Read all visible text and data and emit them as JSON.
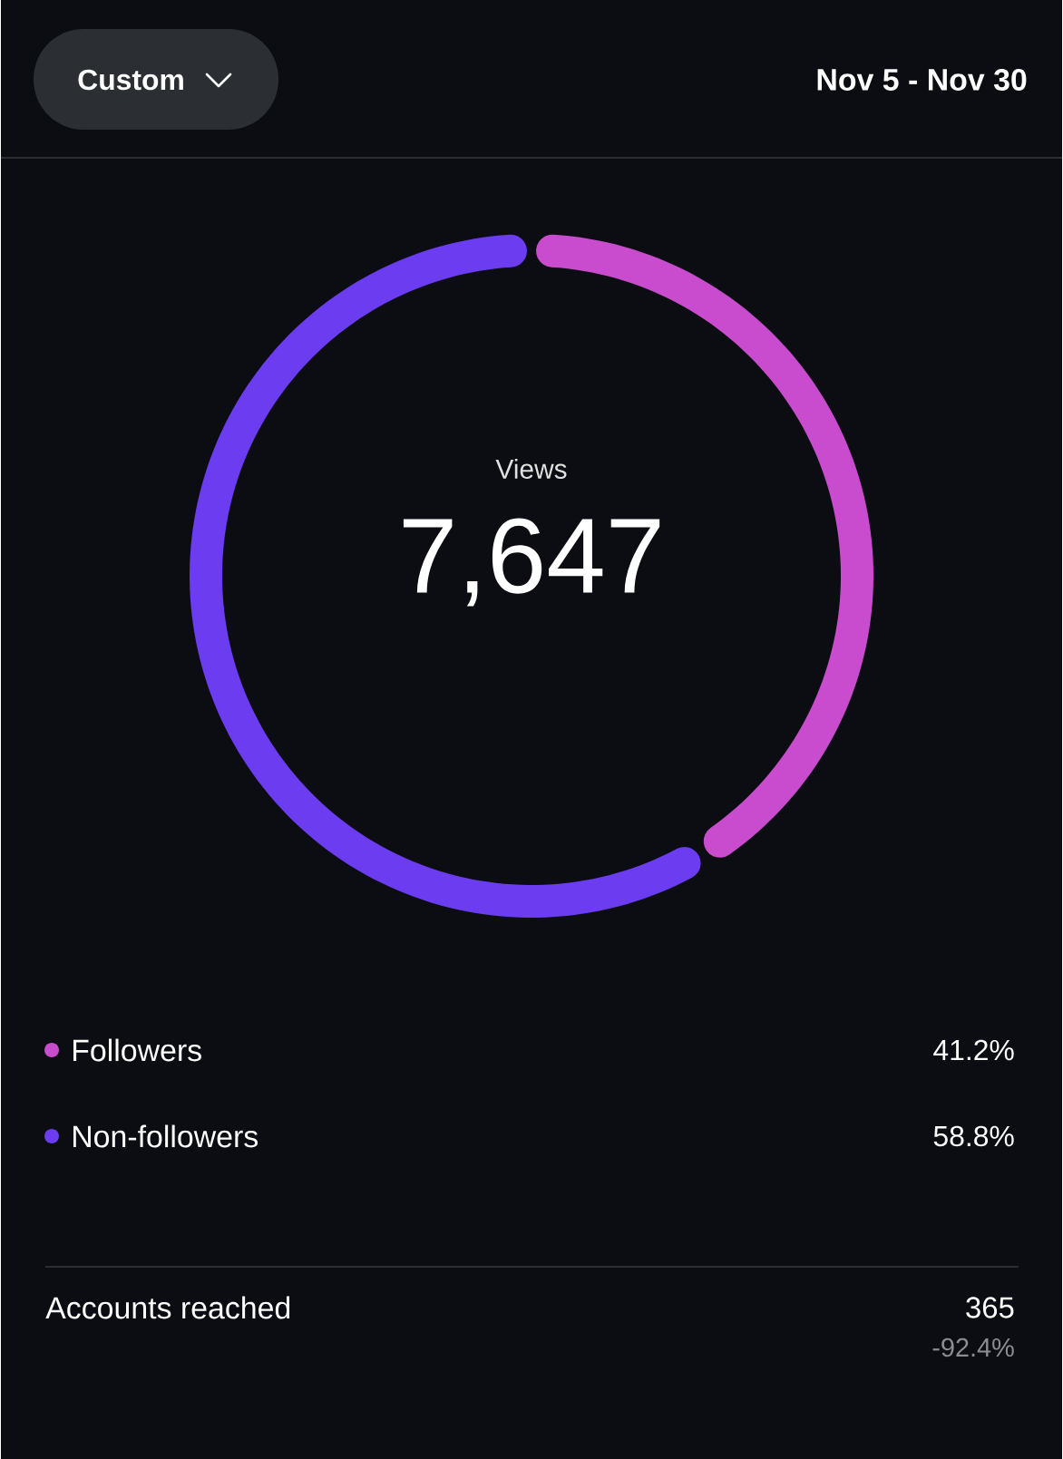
{
  "chart_data": {
    "type": "donut",
    "title": "Views",
    "subtitle": "Nov 5 - Nov 30",
    "categories": [
      "Followers",
      "Non-followers"
    ],
    "values": [
      41.2,
      58.8
    ],
    "colors": [
      "#c94ccf",
      "#6b3cf0"
    ],
    "value_labels": [
      "41.2%",
      "58.8%"
    ],
    "legend": "bottom",
    "annotations": [
      "Custom",
      "7,647",
      "Accounts reached",
      "365",
      "-92.4%"
    ]
  }
}
